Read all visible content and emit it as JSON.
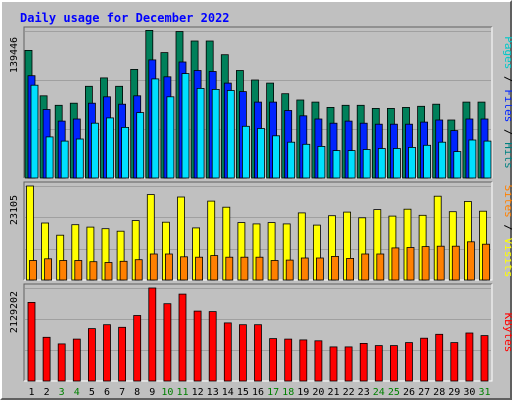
{
  "chart_data": {
    "type": "bar",
    "title": "Daily usage for December 2022",
    "days": [
      "1",
      "2",
      "3",
      "4",
      "5",
      "6",
      "7",
      "8",
      "9",
      "10",
      "11",
      "12",
      "13",
      "14",
      "15",
      "16",
      "17",
      "18",
      "19",
      "20",
      "21",
      "22",
      "23",
      "24",
      "25",
      "26",
      "27",
      "28",
      "29",
      "30",
      "31"
    ],
    "weekend_days": [
      "3",
      "4",
      "10",
      "11",
      "17",
      "18",
      "24",
      "25",
      "31"
    ],
    "panels": [
      {
        "id": "hits",
        "max_label": "139446",
        "ymax": 139446,
        "series": [
          {
            "name": "Hits",
            "color": "#00805a",
            "values": [
              121000,
              78000,
              69000,
              71000,
              87000,
              95000,
              87000,
              103000,
              140000,
              119000,
              139000,
              130000,
              130000,
              117000,
              102000,
              93000,
              90000,
              80000,
              74000,
              72000,
              67000,
              69000,
              69000,
              66000,
              66000,
              67000,
              68000,
              70000,
              55000,
              72000,
              72000
            ]
          },
          {
            "name": "Files",
            "color": "#0024ff",
            "values": [
              97000,
              65000,
              54000,
              56000,
              71000,
              77000,
              70000,
              78000,
              112000,
              96000,
              110000,
              102000,
              101000,
              90000,
              82000,
              72000,
              72000,
              64000,
              59000,
              56000,
              52000,
              54000,
              52000,
              51000,
              51000,
              51000,
              53000,
              55000,
              45000,
              56000,
              56000
            ]
          },
          {
            "name": "Pages",
            "color": "#00e0ff",
            "values": [
              88000,
              39000,
              35000,
              37000,
              52000,
              57000,
              48000,
              62000,
              94000,
              77000,
              99000,
              85000,
              84000,
              83000,
              49000,
              47000,
              40000,
              34000,
              32000,
              30000,
              26000,
              26000,
              27000,
              28000,
              28000,
              29000,
              31000,
              34000,
              25000,
              36000,
              35000
            ]
          }
        ]
      },
      {
        "id": "visits",
        "max_label": "23105",
        "ymax": 23105,
        "series": [
          {
            "name": "Visits",
            "color": "#ffff00",
            "values": [
              23100,
              14000,
              11000,
              13600,
              13000,
              12600,
              12000,
              14600,
              21000,
              14200,
              20400,
              12800,
              19400,
              17900,
              14100,
              13800,
              14100,
              13800,
              16500,
              13500,
              15800,
              16700,
              15300,
              17300,
              15700,
              17400,
              15900,
              20600,
              16800,
              19300,
              16900
            ]
          },
          {
            "name": "Sites",
            "color": "#ff8000",
            "values": [
              4800,
              5200,
              4800,
              4800,
              4500,
              4300,
              4600,
              5000,
              6400,
              6400,
              5700,
              5600,
              6000,
              5600,
              5600,
              5600,
              4800,
              4900,
              5400,
              5400,
              5800,
              5300,
              6400,
              6400,
              7900,
              8000,
              8200,
              8300,
              8300,
              9400,
              8800
            ]
          }
        ]
      },
      {
        "id": "kbytes",
        "max_label": "2129202",
        "ymax": 2129202,
        "series": [
          {
            "name": "KBytes",
            "color": "#ff0000",
            "values": [
              1800000,
              1000000,
              850000,
              960000,
              1200000,
              1290000,
              1230000,
              1500000,
              2130000,
              1770000,
              1990000,
              1600000,
              1590000,
              1330000,
              1290000,
              1290000,
              970000,
              960000,
              940000,
              920000,
              780000,
              780000,
              860000,
              810000,
              810000,
              880000,
              980000,
              1070000,
              880000,
              1100000,
              1040000
            ]
          }
        ]
      }
    ],
    "right_labels": [
      {
        "panel": "hits",
        "parts": [
          {
            "text": "Pages",
            "color": "#00c8c8"
          },
          {
            "text": " / ",
            "color": "#000000"
          },
          {
            "text": "Files",
            "color": "#0024ff"
          },
          {
            "text": " / ",
            "color": "#000000"
          },
          {
            "text": "Hits",
            "color": "#008080"
          }
        ]
      },
      {
        "panel": "visits",
        "parts": [
          {
            "text": "Sites",
            "color": "#ff8000"
          },
          {
            "text": " / ",
            "color": "#000000"
          },
          {
            "text": "Visits",
            "color": "#ffff00"
          }
        ]
      },
      {
        "panel": "kbytes",
        "parts": [
          {
            "text": "KBytes",
            "color": "#ff0000"
          }
        ]
      }
    ],
    "colors": {
      "background": "#c0c0c0",
      "title": "#0000ff",
      "weekday_label": "#000000",
      "weekend_label": "#008000",
      "grid": "#a0a0a0"
    },
    "grid": true,
    "legend": "right (vertical)"
  }
}
